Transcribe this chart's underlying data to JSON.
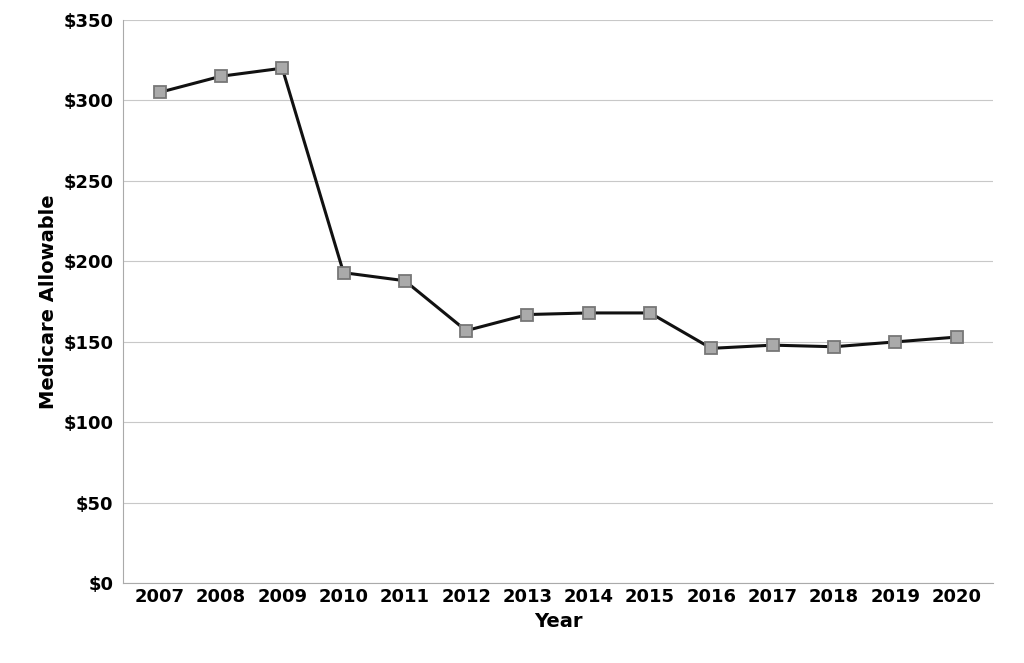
{
  "years": [
    2007,
    2008,
    2009,
    2010,
    2011,
    2012,
    2013,
    2014,
    2015,
    2016,
    2017,
    2018,
    2019,
    2020
  ],
  "values": [
    305,
    315,
    320,
    193,
    188,
    157,
    167,
    168,
    168,
    146,
    148,
    147,
    150,
    153
  ],
  "line_color": "#111111",
  "marker_facecolor": "#aaaaaa",
  "marker_edgecolor": "#777777",
  "marker_style": "s",
  "marker_size": 9,
  "linewidth": 2.2,
  "xlabel": "Year",
  "ylabel": "Medicare Allowable",
  "ylim": [
    0,
    350
  ],
  "yticks": [
    0,
    50,
    100,
    150,
    200,
    250,
    300,
    350
  ],
  "ytick_labels": [
    "$0",
    "$50",
    "$100",
    "$150",
    "$200",
    "$250",
    "$300",
    "$350"
  ],
  "background_color": "#ffffff",
  "grid_color": "#c8c8c8",
  "axis_label_fontsize": 14,
  "tick_fontsize": 13,
  "font_weight": "bold"
}
